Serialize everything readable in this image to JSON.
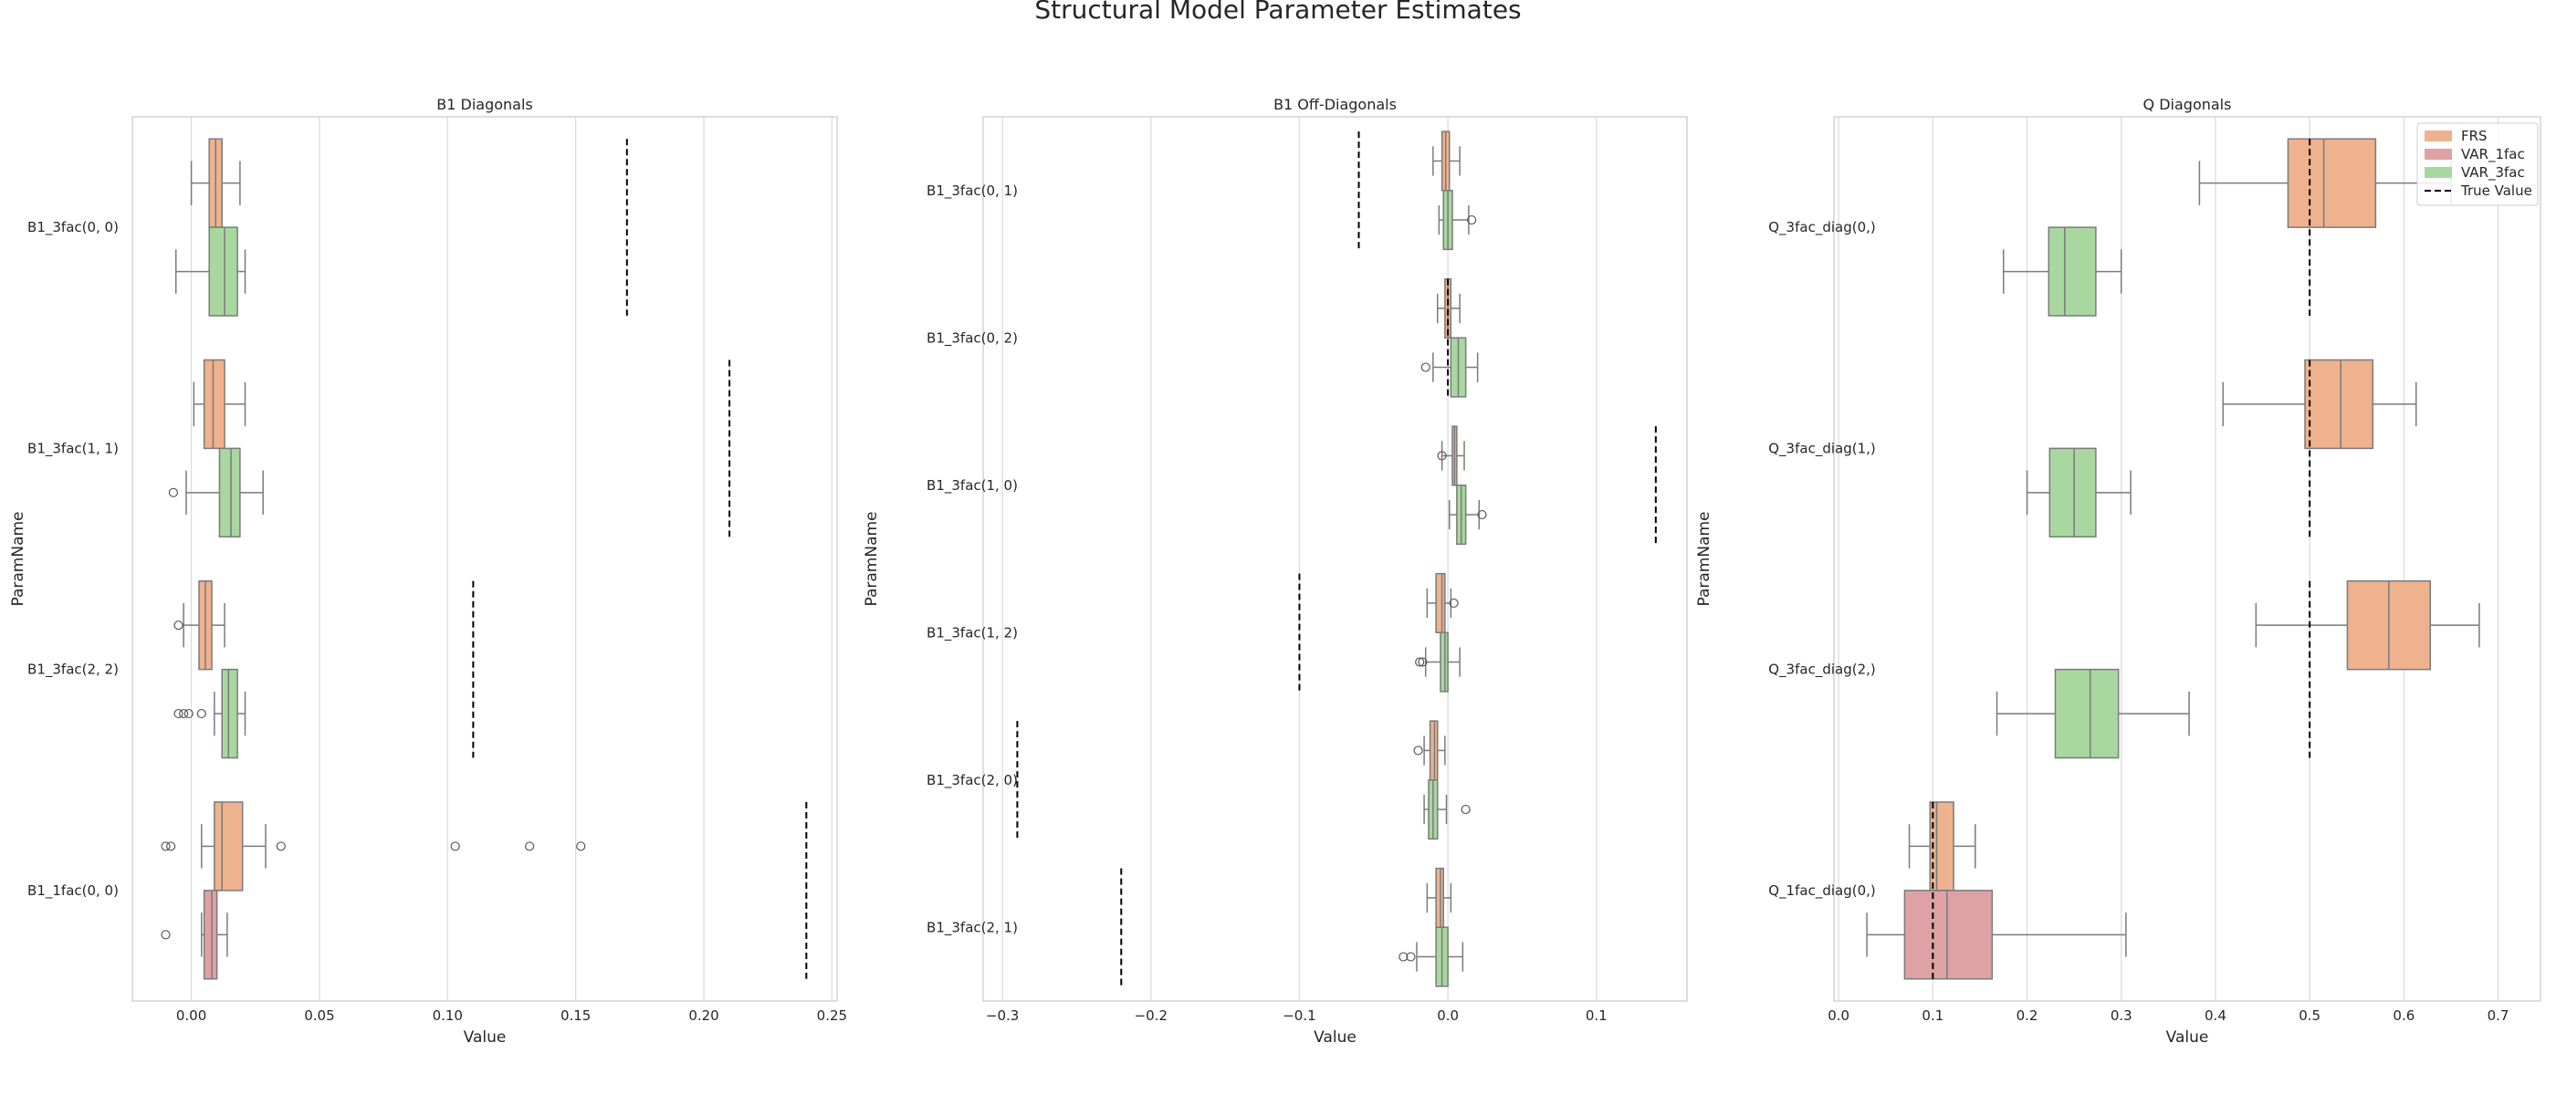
{
  "figure": {
    "title": "Structural Model Parameter Estimates"
  },
  "legend": {
    "placement": "top-right",
    "entries": [
      {
        "label": "FRS",
        "color": "#eeb28f",
        "kind": "patch"
      },
      {
        "label": "VAR_1fac",
        "color": "#dea2a4",
        "kind": "patch"
      },
      {
        "label": "VAR_3fac",
        "color": "#a8d8a0",
        "kind": "patch"
      },
      {
        "label": "True Value",
        "color": "#000000",
        "kind": "dashed-line"
      }
    ]
  },
  "chart_data": [
    {
      "type": "boxplot",
      "orientation": "horizontal",
      "title": "B1 Diagonals",
      "xlabel": "Value",
      "ylabel": "ParamName",
      "xlim": [
        -0.023,
        0.252
      ],
      "xticks": [
        0.0,
        0.05,
        0.1,
        0.15,
        0.2,
        0.25
      ],
      "xtick_labels": [
        "0.00",
        "0.05",
        "0.10",
        "0.15",
        "0.20",
        "0.25"
      ],
      "grid": "vertical",
      "categories": [
        "B1_3fac(0, 0)",
        "B1_3fac(1, 1)",
        "B1_3fac(2, 2)",
        "B1_1fac(0, 0)"
      ],
      "groups": [
        {
          "category": "B1_3fac(0, 0)",
          "true_value": 0.17,
          "boxes": [
            {
              "series": "FRS",
              "whislo": 0.0,
              "q1": 0.007,
              "med": 0.0095,
              "q3": 0.012,
              "whishi": 0.019,
              "fliers": []
            },
            {
              "series": "VAR_3fac",
              "whislo": -0.006,
              "q1": 0.007,
              "med": 0.013,
              "q3": 0.018,
              "whishi": 0.021,
              "fliers": []
            }
          ]
        },
        {
          "category": "B1_3fac(1, 1)",
          "true_value": 0.21,
          "boxes": [
            {
              "series": "FRS",
              "whislo": 0.001,
              "q1": 0.005,
              "med": 0.0085,
              "q3": 0.013,
              "whishi": 0.021,
              "fliers": []
            },
            {
              "series": "VAR_3fac",
              "whislo": -0.002,
              "q1": 0.011,
              "med": 0.0155,
              "q3": 0.019,
              "whishi": 0.028,
              "fliers": [
                -0.007
              ]
            }
          ]
        },
        {
          "category": "B1_3fac(2, 2)",
          "true_value": 0.11,
          "boxes": [
            {
              "series": "FRS",
              "whislo": -0.003,
              "q1": 0.003,
              "med": 0.0055,
              "q3": 0.008,
              "whishi": 0.013,
              "fliers": [
                -0.005
              ]
            },
            {
              "series": "VAR_3fac",
              "whislo": 0.009,
              "q1": 0.012,
              "med": 0.0145,
              "q3": 0.018,
              "whishi": 0.021,
              "fliers": [
                -0.005,
                -0.003,
                -0.001,
                0.004
              ]
            }
          ]
        },
        {
          "category": "B1_1fac(0, 0)",
          "true_value": 0.24,
          "boxes": [
            {
              "series": "FRS",
              "whislo": 0.004,
              "q1": 0.009,
              "med": 0.012,
              "q3": 0.02,
              "whishi": 0.029,
              "fliers": [
                -0.01,
                -0.008,
                0.035,
                0.103,
                0.132,
                0.152
              ]
            },
            {
              "series": "VAR_1fac",
              "whislo": 0.004,
              "q1": 0.005,
              "med": 0.008,
              "q3": 0.01,
              "whishi": 0.014,
              "fliers": [
                -0.01
              ]
            }
          ]
        }
      ]
    },
    {
      "type": "boxplot",
      "orientation": "horizontal",
      "title": "B1 Off-Diagonals",
      "xlabel": "Value",
      "ylabel": "ParamName",
      "xlim": [
        -0.313,
        0.161
      ],
      "xticks": [
        -0.3,
        -0.2,
        -0.1,
        0.0,
        0.1
      ],
      "xtick_labels": [
        "−0.3",
        "−0.2",
        "−0.1",
        "0.0",
        "0.1"
      ],
      "grid": "vertical",
      "categories": [
        "B1_3fac(0, 1)",
        "B1_3fac(0, 2)",
        "B1_3fac(1, 0)",
        "B1_3fac(1, 2)",
        "B1_3fac(2, 0)",
        "B1_3fac(2, 1)"
      ],
      "groups": [
        {
          "category": "B1_3fac(0, 1)",
          "true_value": -0.06,
          "boxes": [
            {
              "series": "FRS",
              "whislo": -0.01,
              "q1": -0.004,
              "med": -0.0015,
              "q3": 0.001,
              "whishi": 0.008,
              "fliers": []
            },
            {
              "series": "VAR_3fac",
              "whislo": -0.006,
              "q1": -0.003,
              "med": 0.0,
              "q3": 0.003,
              "whishi": 0.014,
              "fliers": [
                0.016
              ]
            }
          ]
        },
        {
          "category": "B1_3fac(0, 2)",
          "true_value": 0.0,
          "boxes": [
            {
              "series": "FRS",
              "whislo": -0.007,
              "q1": -0.002,
              "med": 0.0,
              "q3": 0.002,
              "whishi": 0.008,
              "fliers": []
            },
            {
              "series": "VAR_3fac",
              "whislo": -0.01,
              "q1": 0.002,
              "med": 0.007,
              "q3": 0.012,
              "whishi": 0.02,
              "fliers": [
                -0.015
              ]
            }
          ]
        },
        {
          "category": "B1_3fac(1, 0)",
          "true_value": 0.14,
          "boxes": [
            {
              "series": "FRS",
              "whislo": -0.004,
              "q1": 0.003,
              "med": 0.0045,
              "q3": 0.006,
              "whishi": 0.011,
              "fliers": [
                -0.004
              ]
            },
            {
              "series": "VAR_3fac",
              "whislo": 0.001,
              "q1": 0.006,
              "med": 0.009,
              "q3": 0.012,
              "whishi": 0.021,
              "fliers": [
                0.023
              ]
            }
          ]
        },
        {
          "category": "B1_3fac(1, 2)",
          "true_value": -0.1,
          "boxes": [
            {
              "series": "FRS",
              "whislo": -0.014,
              "q1": -0.008,
              "med": -0.004,
              "q3": -0.002,
              "whishi": 0.002,
              "fliers": [
                0.004
              ]
            },
            {
              "series": "VAR_3fac",
              "whislo": -0.015,
              "q1": -0.005,
              "med": -0.002,
              "q3": 0.0,
              "whishi": 0.008,
              "fliers": [
                -0.019,
                -0.017
              ]
            }
          ]
        },
        {
          "category": "B1_3fac(2, 0)",
          "true_value": -0.29,
          "boxes": [
            {
              "series": "FRS",
              "whislo": -0.016,
              "q1": -0.012,
              "med": -0.009,
              "q3": -0.007,
              "whishi": -0.002,
              "fliers": [
                -0.02
              ]
            },
            {
              "series": "VAR_3fac",
              "whislo": -0.016,
              "q1": -0.013,
              "med": -0.01,
              "q3": -0.007,
              "whishi": -0.001,
              "fliers": [
                0.012
              ]
            }
          ]
        },
        {
          "category": "B1_3fac(2, 1)",
          "true_value": -0.22,
          "boxes": [
            {
              "series": "FRS",
              "whislo": -0.014,
              "q1": -0.008,
              "med": -0.005,
              "q3": -0.003,
              "whishi": 0.002,
              "fliers": []
            },
            {
              "series": "VAR_3fac",
              "whislo": -0.021,
              "q1": -0.008,
              "med": -0.004,
              "q3": 0.0,
              "whishi": 0.01,
              "fliers": [
                -0.03,
                -0.025
              ]
            }
          ]
        }
      ]
    },
    {
      "type": "boxplot",
      "orientation": "horizontal",
      "title": "Q Diagonals",
      "xlabel": "Value",
      "ylabel": "ParamName",
      "xlim": [
        -0.005,
        0.745
      ],
      "xticks": [
        0.0,
        0.1,
        0.2,
        0.3,
        0.4,
        0.5,
        0.6,
        0.7
      ],
      "xtick_labels": [
        "0.0",
        "0.1",
        "0.2",
        "0.3",
        "0.4",
        "0.5",
        "0.6",
        "0.7"
      ],
      "grid": "vertical",
      "categories": [
        "Q_3fac_diag(0,)",
        "Q_3fac_diag(1,)",
        "Q_3fac_diag(2,)",
        "Q_1fac_diag(0,)"
      ],
      "groups": [
        {
          "category": "Q_3fac_diag(0,)",
          "true_value": 0.5,
          "boxes": [
            {
              "series": "FRS",
              "whislo": 0.383,
              "q1": 0.477,
              "med": 0.515,
              "q3": 0.57,
              "whishi": 0.65,
              "fliers": []
            },
            {
              "series": "VAR_3fac",
              "whislo": 0.175,
              "q1": 0.223,
              "med": 0.24,
              "q3": 0.273,
              "whishi": 0.3,
              "fliers": []
            }
          ]
        },
        {
          "category": "Q_3fac_diag(1,)",
          "true_value": 0.5,
          "boxes": [
            {
              "series": "FRS",
              "whislo": 0.408,
              "q1": 0.495,
              "med": 0.533,
              "q3": 0.567,
              "whishi": 0.613,
              "fliers": []
            },
            {
              "series": "VAR_3fac",
              "whislo": 0.2,
              "q1": 0.224,
              "med": 0.25,
              "q3": 0.273,
              "whishi": 0.31,
              "fliers": []
            }
          ]
        },
        {
          "category": "Q_3fac_diag(2,)",
          "true_value": 0.5,
          "boxes": [
            {
              "series": "FRS",
              "whislo": 0.443,
              "q1": 0.54,
              "med": 0.584,
              "q3": 0.628,
              "whishi": 0.68,
              "fliers": []
            },
            {
              "series": "VAR_3fac",
              "whislo": 0.168,
              "q1": 0.23,
              "med": 0.267,
              "q3": 0.297,
              "whishi": 0.372,
              "fliers": []
            }
          ]
        },
        {
          "category": "Q_1fac_diag(0,)",
          "true_value": 0.1,
          "boxes": [
            {
              "series": "FRS",
              "whislo": 0.075,
              "q1": 0.097,
              "med": 0.104,
              "q3": 0.122,
              "whishi": 0.145,
              "fliers": []
            },
            {
              "series": "VAR_1fac",
              "whislo": 0.03,
              "q1": 0.07,
              "med": 0.115,
              "q3": 0.163,
              "whishi": 0.305,
              "fliers": []
            }
          ]
        }
      ]
    }
  ]
}
